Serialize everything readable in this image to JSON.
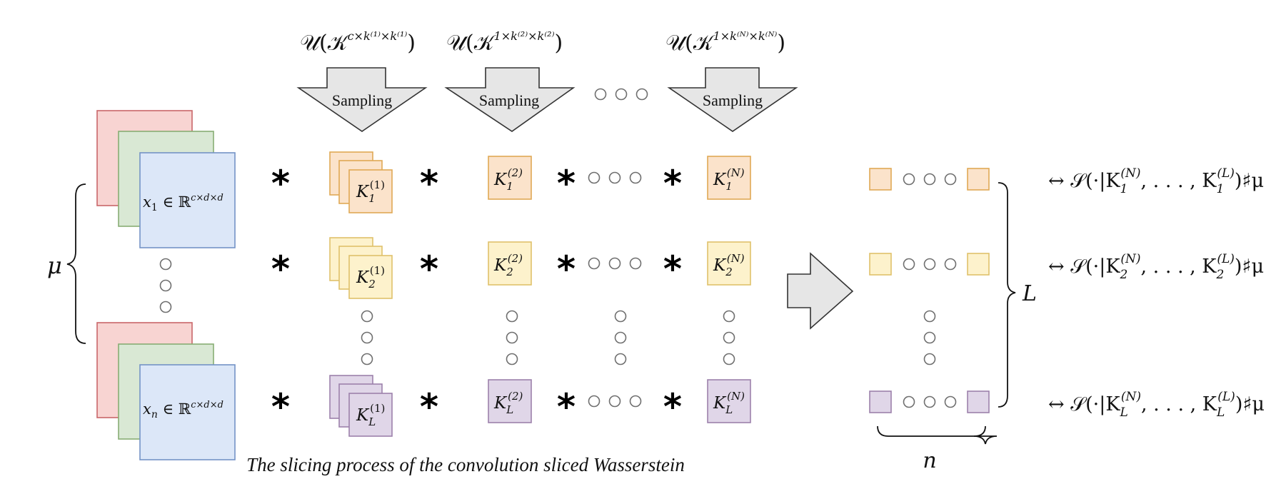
{
  "colors": {
    "red_fill": "#f8d4d2",
    "red_stroke": "#c9676a",
    "green_fill": "#d9e8d4",
    "green_stroke": "#88ad74",
    "blue_fill": "#dce7f8",
    "blue_stroke": "#7493c6",
    "orange_fill": "#fbe3cb",
    "orange_stroke": "#e0a955",
    "yellow_fill": "#fdf2cc",
    "yellow_stroke": "#dfc16a",
    "purple_fill": "#e0d6e8",
    "purple_stroke": "#9c81ab",
    "arrow_fill": "#e6e6e6",
    "arrow_stroke": "#333333"
  },
  "distributions": [
    {
      "prefix": "𝒰(𝒦",
      "sup": "c×k⁽¹⁾×k⁽¹⁾",
      "suffix": ")"
    },
    {
      "prefix": "𝒰(𝒦",
      "sup": "1×k⁽²⁾×k⁽²⁾",
      "suffix": ")"
    },
    {
      "prefix": "𝒰(𝒦",
      "sup": "1×k⁽ᴺ⁾×k⁽ᴺ⁾",
      "suffix": ")"
    }
  ],
  "sampling_label": "Sampling",
  "mu": "μ",
  "inputs": {
    "first": {
      "var": "x",
      "sub": "1",
      "rest": " ∈ ℝ",
      "sup": "c×d×d"
    },
    "last": {
      "var": "x",
      "sub": "n",
      "rest": " ∈ ℝ",
      "sup": "c×d×d"
    }
  },
  "conv_op": "*",
  "kernels": {
    "rows": [
      {
        "sub": "1",
        "color": "orange"
      },
      {
        "sub": "2",
        "color": "yellow"
      },
      {
        "sub": "L",
        "color": "purple"
      }
    ],
    "cols": [
      {
        "sup": "(1)",
        "stacked": true
      },
      {
        "sup": "(2)",
        "stacked": false
      },
      {
        "sup": "(N)",
        "stacked": false
      }
    ],
    "letter": "K"
  },
  "L_label": "L",
  "n_label": "n",
  "pushforwards": [
    {
      "arrow": "↔",
      "pre": "𝒮(·|K",
      "sub": "1",
      "supA": "(N)",
      "mid": ", . . . , K",
      "supB": "(L)",
      "post": ")♯μ"
    },
    {
      "arrow": "↔",
      "pre": "𝒮(·|K",
      "sub": "2",
      "supA": "(N)",
      "mid": ", . . . , K",
      "supB": "(L)",
      "post": ")♯μ"
    },
    {
      "arrow": "↔",
      "pre": "𝒮(·|K",
      "sub": "L",
      "supA": "(N)",
      "mid": ", . . . , K",
      "supB": "(L)",
      "post": ")♯μ"
    }
  ],
  "caption": "The slicing process of the convolution sliced Wasserstein"
}
